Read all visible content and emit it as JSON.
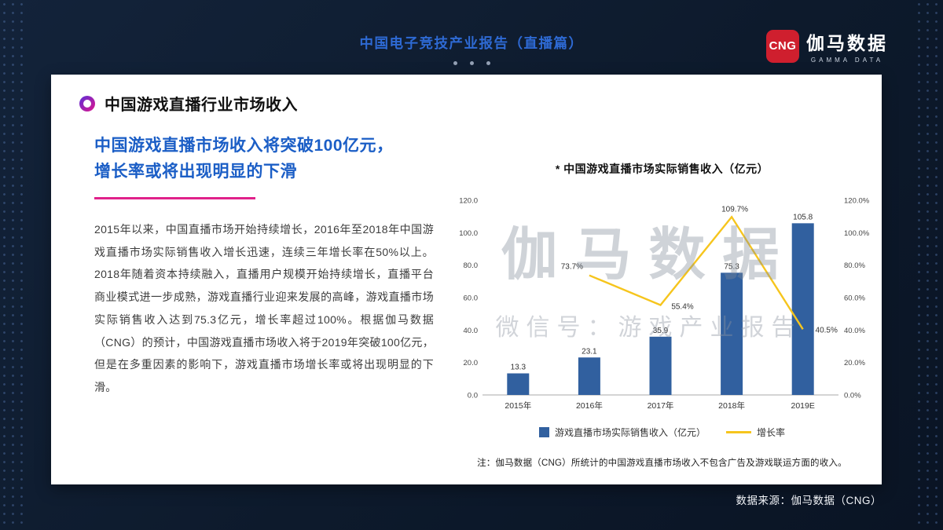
{
  "header": {
    "title": "中国电子竞技产业报告（直播篇）",
    "logo": {
      "badge": "CNG",
      "name": "伽马数据",
      "subtitle": "GAMMA DATA"
    }
  },
  "card": {
    "section_title": "中国游戏直播行业市场收入",
    "headline_line1": "中国游戏直播市场收入将突破100亿元，",
    "headline_line2": "增长率或将出现明显的下滑",
    "body": "2015年以来，中国直播市场开始持续增长，2016年至2018年中国游戏直播市场实际销售收入增长迅速，连续三年增长率在50%以上。2018年随着资本持续融入，直播用户规模开始持续增长，直播平台商业模式进一步成熟，游戏直播行业迎来发展的高峰，游戏直播市场实际销售收入达到75.3亿元，增长率超过100%。根据伽马数据（CNG）的预计，中国游戏直播市场收入将于2019年突破100亿元，但是在多重因素的影响下，游戏直播市场增长率或将出现明显的下滑。",
    "note": "注：伽马数据（CNG）所统计的中国游戏直播市场收入不包含广告及游戏联运方面的收入。",
    "watermark_line1": "伽马数据",
    "watermark_line2": "微信号：游戏产业报告"
  },
  "chart_data": {
    "type": "bar+line",
    "title": "* 中国游戏直播市场实际销售收入（亿元）",
    "categories": [
      "2015年",
      "2016年",
      "2017年",
      "2018年",
      "2019E"
    ],
    "series": [
      {
        "name": "游戏直播市场实际销售收入（亿元）",
        "type": "bar",
        "values": [
          13.3,
          23.1,
          35.9,
          75.3,
          105.8
        ],
        "color": "#31609f"
      },
      {
        "name": "增长率",
        "type": "line",
        "values": [
          null,
          73.7,
          55.4,
          109.7,
          40.5
        ],
        "unit": "%",
        "color": "#f6c51d",
        "label_offsets": {
          "1": [
            -22,
            -8
          ],
          "2": [
            28,
            5
          ],
          "3": [
            4,
            -7
          ],
          "4": [
            30,
            4
          ]
        }
      }
    ],
    "left_axis": {
      "min": 0,
      "max": 120,
      "ticks": [
        "0.0",
        "20.0",
        "40.0",
        "60.0",
        "80.0",
        "100.0",
        "120.0"
      ]
    },
    "right_axis": {
      "min": 0,
      "max": 120,
      "ticks": [
        "0.0%",
        "20.0%",
        "40.0%",
        "60.0%",
        "80.0%",
        "100.0%",
        "120.0%"
      ]
    },
    "grid": false,
    "legend_position": "bottom"
  },
  "footer": {
    "source": "数据来源：伽马数据（CNG）"
  }
}
